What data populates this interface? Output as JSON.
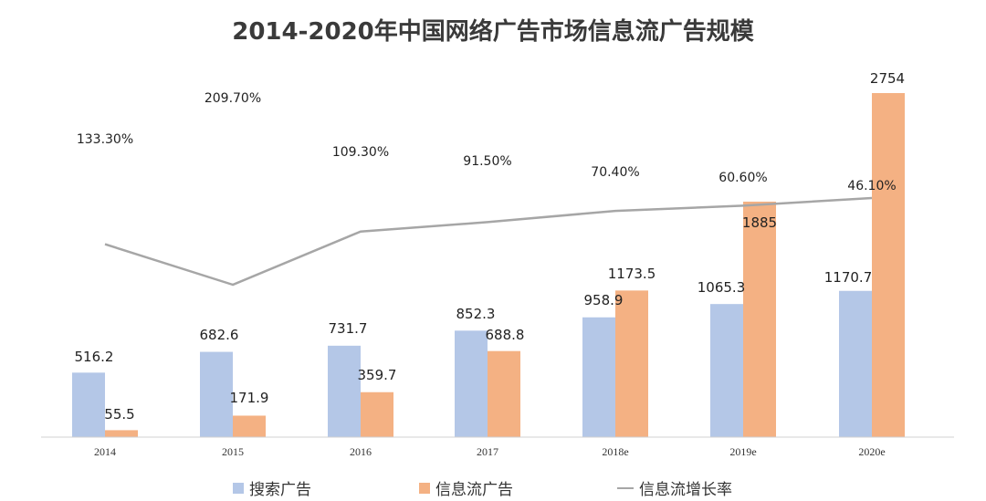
{
  "chart_data": {
    "type": "bar",
    "title": "2014-2020年中国网络广告市场信息流广告规模",
    "categories": [
      "2014",
      "2015",
      "2016",
      "2017",
      "2018e",
      "2019e",
      "2020e"
    ],
    "series": [
      {
        "name": "搜索广告",
        "type": "bar",
        "color": "#b4c7e7",
        "values": [
          516.2,
          682.6,
          731.7,
          852.3,
          958.9,
          1065.3,
          1170.7
        ],
        "labels": [
          "516.2",
          "682.6",
          "731.7",
          "852.3",
          "958.9",
          "1065.3",
          "1170.7"
        ]
      },
      {
        "name": "信息流广告",
        "type": "bar",
        "color": "#f4b183",
        "values": [
          55.5,
          171.9,
          359.7,
          688.8,
          1173.5,
          1885,
          2754
        ],
        "labels": [
          "55.5",
          "171.9",
          "359.7",
          "688.8",
          "1173.5",
          "1885",
          "2754"
        ]
      },
      {
        "name": "信息流增长率",
        "type": "line",
        "color": "#a6a6a6",
        "values": [
          133.3,
          209.7,
          109.3,
          91.5,
          70.4,
          60.6,
          46.1
        ],
        "labels": [
          "133.30%",
          "209.70%",
          "109.30%",
          "91.50%",
          "70.40%",
          "60.60%",
          "46.10%"
        ]
      }
    ],
    "ylim": [
      0,
      2754
    ],
    "legend": "bottom",
    "grid": false
  }
}
